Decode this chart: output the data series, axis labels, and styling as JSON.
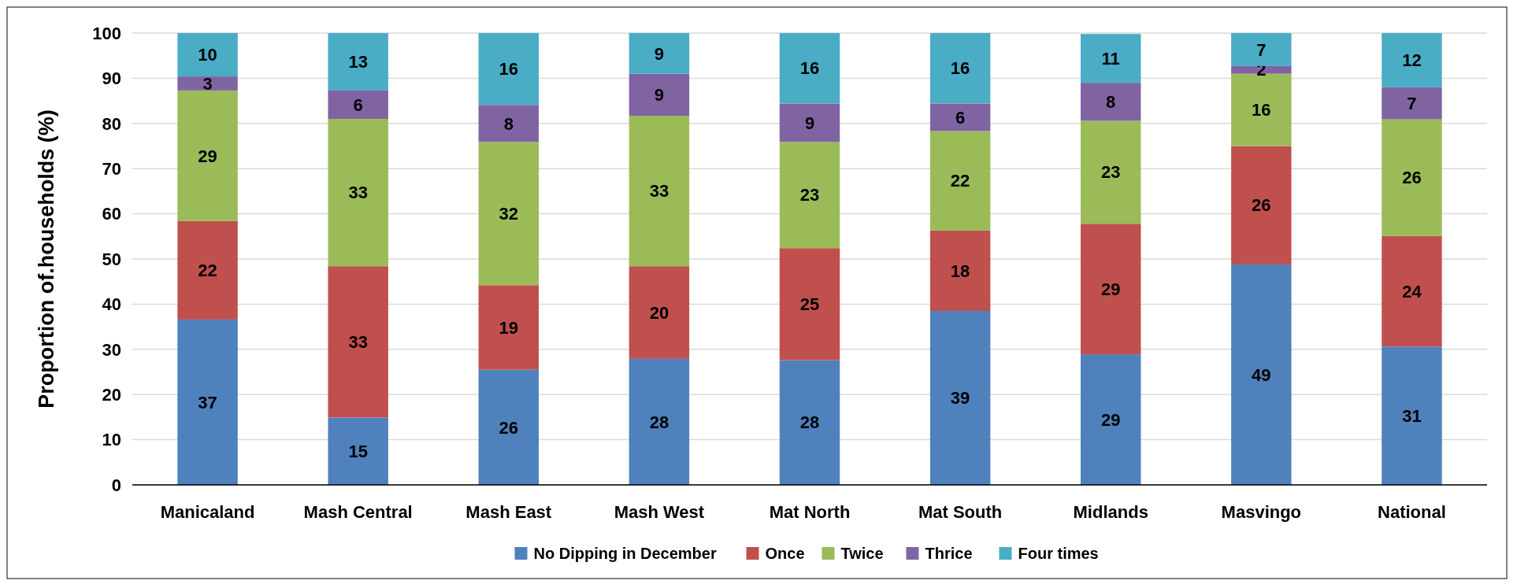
{
  "chart_data": {
    "type": "bar",
    "stacked": true,
    "ylabel": "Proportion of.households (%)",
    "categories": [
      "Manicaland",
      "Mash Central",
      "Mash East",
      "Mash West",
      "Mat North",
      "Mat South",
      "Midlands",
      "Masvingo",
      "National"
    ],
    "series": [
      {
        "name": "No Dipping in December",
        "color": "#4f81bd",
        "values": [
          36.6,
          14.9,
          25.5,
          27.9,
          27.6,
          38.5,
          28.9,
          48.8,
          30.6
        ],
        "value_labels": [
          "37",
          "15",
          "26",
          "28",
          "28",
          "39",
          "29",
          "49",
          "31"
        ]
      },
      {
        "name": "Once",
        "color": "#c0504d",
        "values": [
          21.8,
          33.5,
          18.7,
          20.5,
          24.8,
          17.8,
          28.9,
          26.2,
          24.5
        ],
        "value_labels": [
          "22",
          "33",
          "19",
          "20",
          "25",
          "18",
          "29",
          "26",
          "24"
        ]
      },
      {
        "name": "Twice",
        "color": "#9bbb59",
        "values": [
          28.9,
          32.6,
          31.7,
          33.3,
          23.5,
          22.0,
          22.8,
          16.0,
          25.8
        ],
        "value_labels": [
          "29",
          "33",
          "32",
          "33",
          "23",
          "22",
          "23",
          "16",
          "26"
        ]
      },
      {
        "name": "Thrice",
        "color": "#8064a2",
        "values": [
          3.1,
          6.3,
          8.2,
          9.3,
          8.5,
          6.1,
          8.4,
          1.7,
          7.1
        ],
        "value_labels": [
          "3",
          "6",
          "8",
          "9",
          "9",
          "6",
          "8",
          "2",
          "7"
        ]
      },
      {
        "name": "Four times",
        "color": "#4bacc6",
        "values": [
          9.6,
          12.7,
          15.9,
          9.0,
          15.6,
          15.6,
          10.8,
          7.3,
          12.0
        ],
        "value_labels": [
          "10",
          "13",
          "16",
          "9",
          "16",
          "16",
          "11",
          "7",
          "12"
        ]
      }
    ],
    "ylim": [
      0,
      100
    ],
    "yticks": [
      0,
      10,
      20,
      30,
      40,
      50,
      60,
      70,
      80,
      90,
      100
    ],
    "grid": "y",
    "legend": "bottom"
  }
}
